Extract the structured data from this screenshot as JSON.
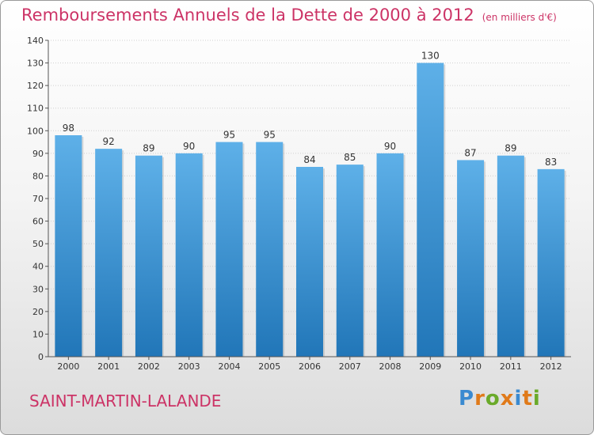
{
  "header": {
    "title": "Remboursements Annuels de la Dette de 2000 à 2012",
    "unit": "(en milliers d'€)"
  },
  "footer": {
    "commune": "SAINT-MARTIN-LALANDE",
    "logo_text": "Proxiti",
    "logo_letters": [
      {
        "ch": "P",
        "color": "#3a8ad0"
      },
      {
        "ch": "r",
        "color": "#e07a1a"
      },
      {
        "ch": "o",
        "color": "#6aaa2a"
      },
      {
        "ch": "x",
        "color": "#e07a1a"
      },
      {
        "ch": "i",
        "color": "#3a8ad0"
      },
      {
        "ch": "t",
        "color": "#e07a1a"
      },
      {
        "ch": "i",
        "color": "#6aaa2a"
      }
    ]
  },
  "colors": {
    "title": "#cc3366",
    "bar_top": "#5eb0e8",
    "bar_bottom": "#2176b8",
    "grid": "#cfcfcf"
  },
  "chart_data": {
    "type": "bar",
    "title": "Remboursements Annuels de la Dette de 2000 à 2012",
    "categories": [
      "2000",
      "2001",
      "2002",
      "2003",
      "2004",
      "2005",
      "2006",
      "2007",
      "2008",
      "2009",
      "2010",
      "2011",
      "2012"
    ],
    "values": [
      98,
      92,
      89,
      90,
      95,
      95,
      84,
      85,
      90,
      130,
      87,
      89,
      83
    ],
    "ylim": [
      0,
      140
    ],
    "yticks": [
      0,
      10,
      20,
      30,
      40,
      50,
      60,
      70,
      80,
      90,
      100,
      110,
      120,
      130,
      140
    ],
    "grid": true,
    "xlabel": "",
    "ylabel": ""
  }
}
